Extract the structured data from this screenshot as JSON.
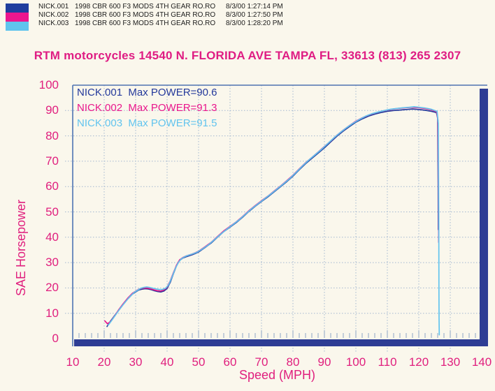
{
  "header": {
    "runs": [
      {
        "name": "NICK.001",
        "description": "1998 CBR 600 F3 MODS 4TH GEAR RO.RO",
        "timestamp": "8/3/00 1:27:14 PM",
        "color": "#1F3E9E"
      },
      {
        "name": "NICK.002",
        "description": "1998 CBR 600 F3 MODS 4TH GEAR RO.RO",
        "timestamp": "8/3/00 1:27:50 PM",
        "color": "#EC168E"
      },
      {
        "name": "NICK.003",
        "description": "1998 CBR 600 F3 MODS 4TH GEAR RO.RO",
        "timestamp": "8/3/00 1:28:20 PM",
        "color": "#5FC4EE"
      }
    ]
  },
  "title": "RTM motorcycles 14540 N. FLORIDA AVE TAMPA FL, 33613 (813) 265 2307",
  "chart_data": {
    "type": "line",
    "title": "RTM motorcycles 14540 N. FLORIDA AVE TAMPA FL, 33613 (813) 265 2307",
    "xlabel": "Speed (MPH)",
    "ylabel": "SAE Horsepower",
    "xlim": [
      10,
      140
    ],
    "ylim": [
      0,
      100
    ],
    "x_ticks": [
      10,
      20,
      30,
      40,
      50,
      60,
      70,
      80,
      90,
      100,
      110,
      120,
      130,
      140
    ],
    "y_ticks": [
      0,
      10,
      20,
      30,
      40,
      50,
      60,
      70,
      80,
      90,
      100
    ],
    "grid": true,
    "legend_position": "top-left",
    "legend_prefix": "Max POWER=",
    "colors": {
      "grid": "#A3B7D0",
      "frame": "#4E74B2",
      "axis_bar": "#2E3D94",
      "tick_text": "#E01F7E",
      "minor_tick": "#8CA4C6"
    },
    "series": [
      {
        "name": "NICK.001",
        "color": "#24399B",
        "max_power": 90.6,
        "points": [
          [
            20.9,
            4.8
          ],
          [
            22,
            6.9
          ],
          [
            23.2,
            8.9
          ],
          [
            24.5,
            11.0
          ],
          [
            26,
            13.4
          ],
          [
            27.5,
            15.7
          ],
          [
            29,
            17.6
          ],
          [
            30,
            18.4
          ],
          [
            31,
            19.2
          ],
          [
            32,
            19.5
          ],
          [
            33,
            19.7
          ],
          [
            34,
            19.6
          ],
          [
            35,
            19.3
          ],
          [
            36,
            18.9
          ],
          [
            37,
            18.6
          ],
          [
            38,
            18.4
          ],
          [
            39,
            18.8
          ],
          [
            40,
            19.8
          ],
          [
            41,
            22.2
          ],
          [
            42,
            25.6
          ],
          [
            43,
            28.8
          ],
          [
            44,
            30.9
          ],
          [
            45,
            31.8
          ],
          [
            46,
            32.3
          ],
          [
            47,
            32.7
          ],
          [
            48,
            33.1
          ],
          [
            49,
            33.6
          ],
          [
            50,
            34.2
          ],
          [
            52,
            35.9
          ],
          [
            54,
            37.7
          ],
          [
            56,
            40.0
          ],
          [
            58,
            42.2
          ],
          [
            60,
            44.0
          ],
          [
            62,
            45.8
          ],
          [
            64,
            47.9
          ],
          [
            66,
            50.2
          ],
          [
            68,
            52.2
          ],
          [
            70,
            54.1
          ],
          [
            72,
            55.9
          ],
          [
            74,
            57.9
          ],
          [
            76,
            59.9
          ],
          [
            78,
            61.9
          ],
          [
            80,
            64.1
          ],
          [
            82,
            66.6
          ],
          [
            84,
            69.0
          ],
          [
            86,
            71.1
          ],
          [
            88,
            73.2
          ],
          [
            90,
            75.3
          ],
          [
            92,
            77.6
          ],
          [
            94,
            79.9
          ],
          [
            96,
            81.9
          ],
          [
            98,
            83.7
          ],
          [
            100,
            85.4
          ],
          [
            102,
            86.7
          ],
          [
            104,
            87.8
          ],
          [
            106,
            88.6
          ],
          [
            108,
            89.2
          ],
          [
            110,
            89.7
          ],
          [
            112,
            90.0
          ],
          [
            114,
            90.2
          ],
          [
            116,
            90.4
          ],
          [
            118,
            90.6
          ],
          [
            120,
            90.4
          ],
          [
            122,
            90.1
          ],
          [
            124,
            89.7
          ],
          [
            125.6,
            89.2
          ],
          [
            126.0,
            87.0
          ],
          [
            126.15,
            60.0
          ],
          [
            126.2,
            43.0
          ]
        ]
      },
      {
        "name": "NICK.002",
        "color": "#E9168C",
        "max_power": 91.3,
        "points": [
          [
            20.2,
            7.0
          ],
          [
            21.0,
            5.9
          ],
          [
            22,
            6.6
          ],
          [
            23.2,
            8.7
          ],
          [
            24.5,
            11.2
          ],
          [
            26,
            13.7
          ],
          [
            27.5,
            16.0
          ],
          [
            29,
            17.9
          ],
          [
            30,
            18.7
          ],
          [
            31,
            19.5
          ],
          [
            32,
            19.9
          ],
          [
            33,
            20.0
          ],
          [
            34,
            19.9
          ],
          [
            35,
            19.6
          ],
          [
            36,
            19.2
          ],
          [
            37,
            18.9
          ],
          [
            38,
            18.8
          ],
          [
            39,
            19.2
          ],
          [
            40,
            20.3
          ],
          [
            41,
            22.8
          ],
          [
            42,
            26.0
          ],
          [
            43,
            29.0
          ],
          [
            44,
            31.1
          ],
          [
            45,
            32.0
          ],
          [
            46,
            32.6
          ],
          [
            47,
            33.0
          ],
          [
            48,
            33.4
          ],
          [
            49,
            33.9
          ],
          [
            50,
            34.5
          ],
          [
            52,
            36.2
          ],
          [
            54,
            38.0
          ],
          [
            56,
            40.3
          ],
          [
            58,
            42.5
          ],
          [
            60,
            44.3
          ],
          [
            62,
            46.1
          ],
          [
            64,
            48.2
          ],
          [
            66,
            50.5
          ],
          [
            68,
            52.5
          ],
          [
            70,
            54.4
          ],
          [
            72,
            56.2
          ],
          [
            74,
            58.2
          ],
          [
            76,
            60.2
          ],
          [
            78,
            62.3
          ],
          [
            80,
            64.5
          ],
          [
            82,
            67.0
          ],
          [
            84,
            69.4
          ],
          [
            86,
            71.5
          ],
          [
            88,
            73.6
          ],
          [
            90,
            75.8
          ],
          [
            92,
            78.0
          ],
          [
            94,
            80.3
          ],
          [
            96,
            82.3
          ],
          [
            98,
            84.1
          ],
          [
            100,
            85.8
          ],
          [
            102,
            87.1
          ],
          [
            104,
            88.2
          ],
          [
            106,
            89.0
          ],
          [
            108,
            89.7
          ],
          [
            110,
            90.2
          ],
          [
            112,
            90.6
          ],
          [
            114,
            90.9
          ],
          [
            116,
            91.1
          ],
          [
            118,
            91.3
          ],
          [
            120,
            91.1
          ],
          [
            122,
            90.8
          ],
          [
            124,
            90.3
          ],
          [
            125.7,
            89.5
          ],
          [
            126.1,
            86.0
          ],
          [
            126.25,
            58.0
          ],
          [
            126.3,
            38.0
          ]
        ]
      },
      {
        "name": "NICK.003",
        "color": "#62C4EE",
        "max_power": 91.5,
        "points": [
          [
            21.3,
            5.3
          ],
          [
            22.4,
            7.2
          ],
          [
            23.6,
            9.3
          ],
          [
            25,
            11.8
          ],
          [
            26.5,
            14.2
          ],
          [
            28,
            16.4
          ],
          [
            29.5,
            18.2
          ],
          [
            30.5,
            19.0
          ],
          [
            31.5,
            19.8
          ],
          [
            32.5,
            20.2
          ],
          [
            33.5,
            20.4
          ],
          [
            34.5,
            20.2
          ],
          [
            35.5,
            19.9
          ],
          [
            36.5,
            19.6
          ],
          [
            37.5,
            19.4
          ],
          [
            38.5,
            19.4
          ],
          [
            39.5,
            19.9
          ],
          [
            40.5,
            21.3
          ],
          [
            41.5,
            24.2
          ],
          [
            42.5,
            27.4
          ],
          [
            43.5,
            29.9
          ],
          [
            44.5,
            31.5
          ],
          [
            45.5,
            32.3
          ],
          [
            46.5,
            32.8
          ],
          [
            47.5,
            33.2
          ],
          [
            48.5,
            33.6
          ],
          [
            49.5,
            34.1
          ],
          [
            51,
            35.2
          ],
          [
            53,
            36.9
          ],
          [
            55,
            39.0
          ],
          [
            57,
            41.2
          ],
          [
            59,
            43.2
          ],
          [
            61,
            45.1
          ],
          [
            63,
            47.0
          ],
          [
            65,
            49.2
          ],
          [
            67,
            51.4
          ],
          [
            69,
            53.3
          ],
          [
            71,
            55.2
          ],
          [
            73,
            57.1
          ],
          [
            75,
            59.1
          ],
          [
            77,
            61.1
          ],
          [
            79,
            63.2
          ],
          [
            81,
            65.6
          ],
          [
            83,
            68.1
          ],
          [
            85,
            70.4
          ],
          [
            87,
            72.5
          ],
          [
            89,
            74.6
          ],
          [
            91,
            76.9
          ],
          [
            93,
            79.2
          ],
          [
            95,
            81.3
          ],
          [
            97,
            83.2
          ],
          [
            99,
            84.9
          ],
          [
            101,
            86.4
          ],
          [
            103,
            87.7
          ],
          [
            105,
            88.7
          ],
          [
            107,
            89.4
          ],
          [
            109,
            90.0
          ],
          [
            111,
            90.5
          ],
          [
            113,
            90.8
          ],
          [
            115,
            91.1
          ],
          [
            117,
            91.3
          ],
          [
            118.5,
            91.5
          ],
          [
            120,
            91.3
          ],
          [
            122,
            91.0
          ],
          [
            124,
            90.5
          ],
          [
            125.8,
            89.7
          ],
          [
            126.2,
            85.0
          ],
          [
            126.35,
            45.0
          ],
          [
            126.4,
            20.0
          ],
          [
            126.45,
            8.0
          ],
          [
            126.5,
            1.5
          ]
        ]
      }
    ]
  }
}
